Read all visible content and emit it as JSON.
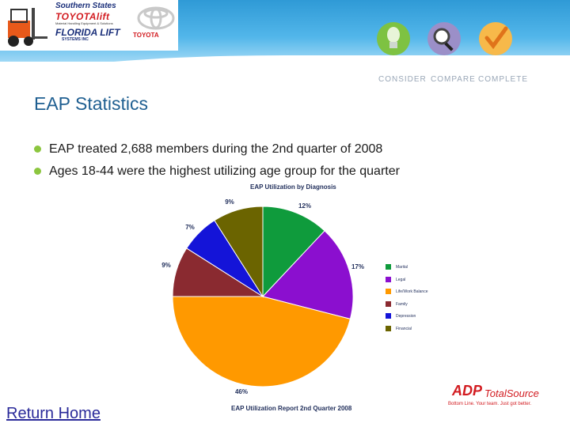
{
  "header": {
    "logo_line1": "Southern States",
    "logo_line2": "TOYOTAlift",
    "logo_sub": "Material Handling Equipment & Solutions",
    "logo_line3": "FLORIDA LIFT",
    "logo_sub2": "SYSTEMS INC",
    "toyota_word": "TOYOTA",
    "nav": [
      {
        "label": "CONSIDER",
        "icon": "bulb-icon"
      },
      {
        "label": "COMPARE",
        "icon": "magnifier-icon"
      },
      {
        "label": "COMPLETE",
        "icon": "checkmark-icon"
      }
    ]
  },
  "title": "EAP Statistics",
  "bullets": [
    "EAP treated 2,688 members during the 2nd quarter of 2008",
    "Ages 18-44 were the highest utilizing age group for the quarter"
  ],
  "chart_data": {
    "type": "pie",
    "title": "EAP Utilization by Diagnosis",
    "caption": "EAP Utilization Report 2nd Quarter 2008",
    "slices": [
      {
        "name": "Marital",
        "value": 12,
        "label": "12%",
        "color": "#0f9b3c"
      },
      {
        "name": "Legal",
        "value": 17,
        "label": "17%",
        "color": "#8b0fcf"
      },
      {
        "name": "Life/Work Balance",
        "value": 46,
        "label": "46%",
        "color": "#ff9900"
      },
      {
        "name": "Family",
        "value": 9,
        "label": "9%",
        "color": "#8a2a30"
      },
      {
        "name": "Depression",
        "value": 7,
        "label": "7%",
        "color": "#1414d8"
      },
      {
        "name": "Financial",
        "value": 9,
        "label": "9%",
        "color": "#6b6400"
      }
    ],
    "legend_position": "right"
  },
  "footer": {
    "return_link": "Return Home",
    "adp_mark": "ADP",
    "adp_brand": "TotalSource",
    "adp_tagline": "Bottom Line. Your team. Just got better."
  },
  "colors": {
    "title": "#1f5f91",
    "bullet": "#8cc63f",
    "band": "#2f9ad6",
    "adp_red": "#d21b20"
  }
}
